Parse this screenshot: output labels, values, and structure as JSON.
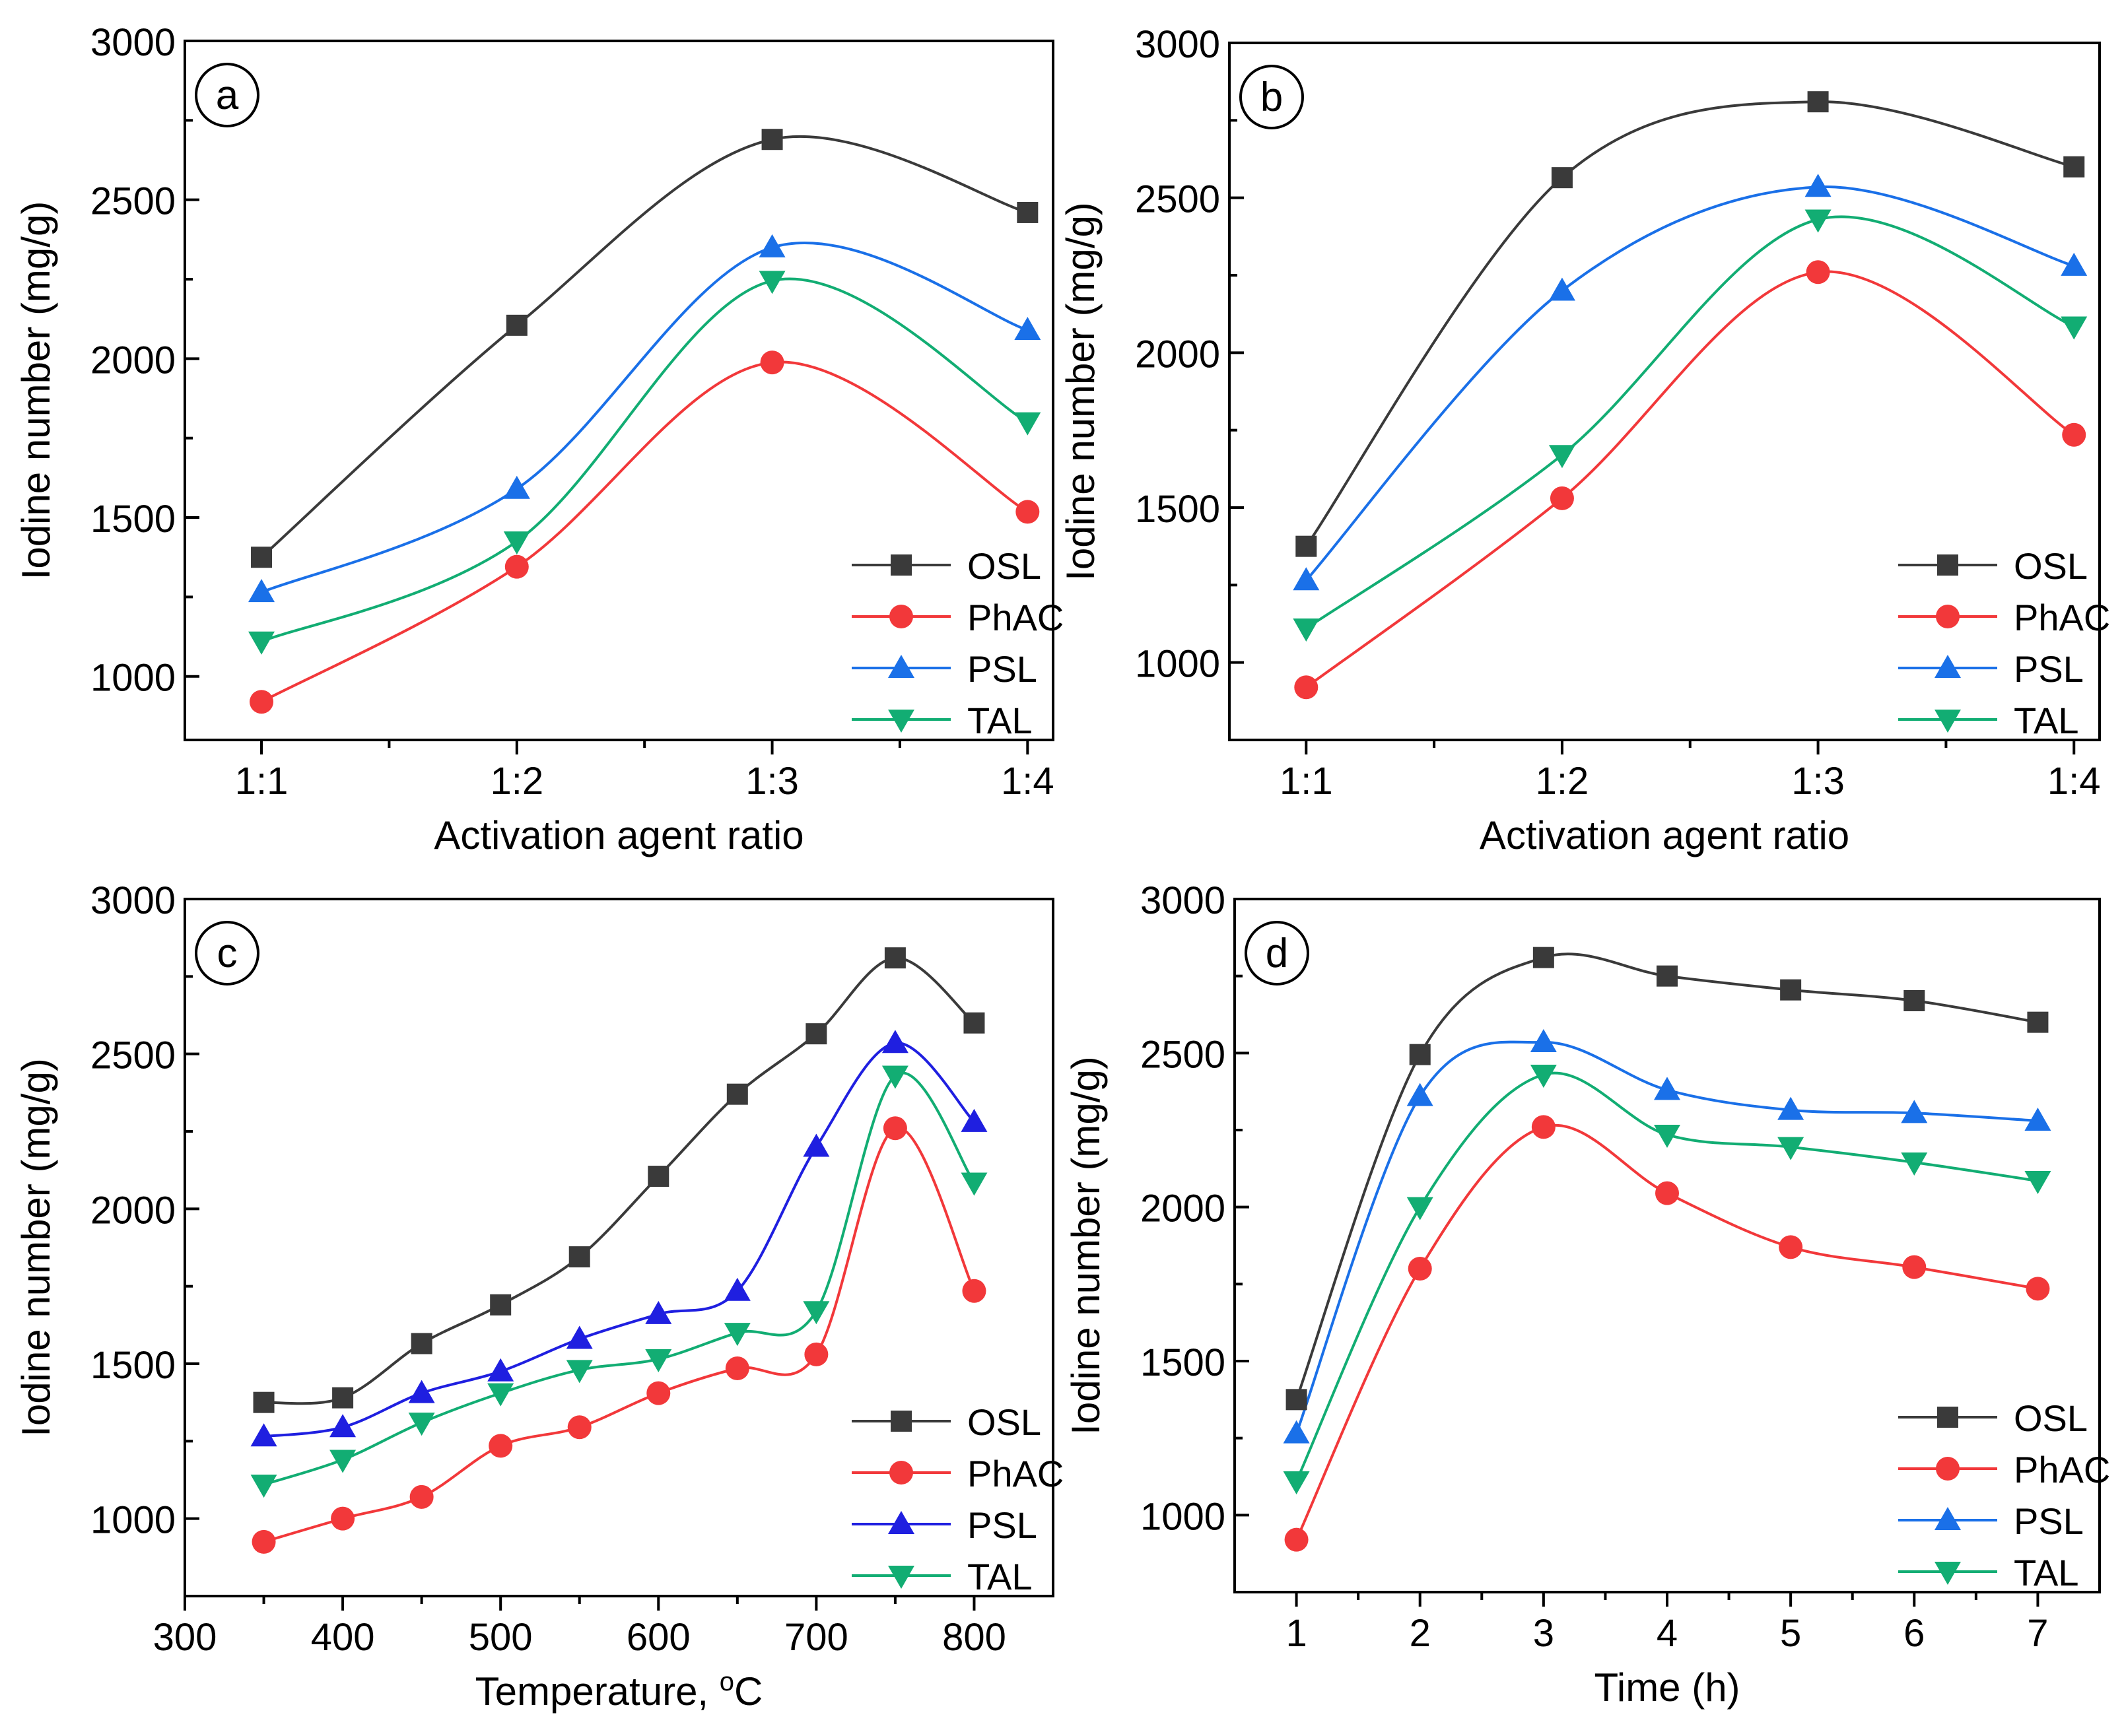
{
  "colors": {
    "OSL": "#3a3a3a",
    "PhAC": "#f2383a",
    "PSL": "#1a70e8",
    "PSL_panel_c": "#1f1fe0",
    "TAL": "#12ad73"
  },
  "chart_data": [
    {
      "type": "line",
      "panel_label": "a",
      "title": "",
      "xlabel": "Activation agent ratio",
      "ylabel": "Iodine number (mg/g)",
      "x_is_categorical": true,
      "categories": [
        "1:1",
        "1:2",
        "1:3",
        "1:4"
      ],
      "xlim": [
        0.7,
        4.1
      ],
      "ylim": [
        800,
        3000
      ],
      "yticks": [
        1000,
        1500,
        2000,
        2500,
        3000
      ],
      "grid": false,
      "legend_position": "bottom-right",
      "series": [
        {
          "name": "OSL",
          "marker": "square",
          "values": [
            1375,
            2105,
            2690,
            2460
          ]
        },
        {
          "name": "PhAC",
          "marker": "circle",
          "values": [
            920,
            1345,
            1988,
            1518
          ]
        },
        {
          "name": "PSL",
          "marker": "triangle-up",
          "values": [
            1265,
            1590,
            2350,
            2090
          ]
        },
        {
          "name": "TAL",
          "marker": "triangle-down",
          "values": [
            1110,
            1425,
            2245,
            1800
          ]
        }
      ]
    },
    {
      "type": "line",
      "panel_label": "b",
      "title": "",
      "xlabel": "Activation agent ratio",
      "ylabel": "Iodine number (mg/g)",
      "x_is_categorical": true,
      "categories": [
        "1:1",
        "1:2",
        "1:3",
        "1:4"
      ],
      "xlim": [
        0.7,
        4.1
      ],
      "ylim": [
        750,
        3000
      ],
      "yticks": [
        1000,
        1500,
        2000,
        2500,
        3000
      ],
      "grid": false,
      "legend_position": "bottom-right",
      "series": [
        {
          "name": "OSL",
          "marker": "square",
          "values": [
            1375,
            2565,
            2810,
            2600
          ]
        },
        {
          "name": "PhAC",
          "marker": "circle",
          "values": [
            920,
            1530,
            2260,
            1735
          ]
        },
        {
          "name": "PSL",
          "marker": "triangle-up",
          "values": [
            1265,
            2200,
            2535,
            2280
          ]
        },
        {
          "name": "TAL",
          "marker": "triangle-down",
          "values": [
            1110,
            1670,
            2430,
            2085
          ]
        }
      ]
    },
    {
      "type": "line",
      "panel_label": "c",
      "title": "",
      "xlabel": "Temperature, ",
      "xlabel_unit": "C",
      "xlabel_sup": "o",
      "ylabel": "Iodine number (mg/g)",
      "x": [
        350,
        400,
        450,
        500,
        550,
        600,
        650,
        700,
        750,
        800
      ],
      "xlim": [
        300,
        850
      ],
      "xticks": [
        300,
        400,
        500,
        600,
        700,
        800
      ],
      "ylim": [
        750,
        3000
      ],
      "yticks": [
        1000,
        1500,
        2000,
        2500,
        3000
      ],
      "grid": false,
      "legend_position": "bottom-right",
      "series": [
        {
          "name": "OSL",
          "marker": "square",
          "values": [
            1375,
            1390,
            1565,
            1690,
            1845,
            2105,
            2370,
            2565,
            2810,
            2600
          ]
        },
        {
          "name": "PhAC",
          "marker": "circle",
          "values": [
            925,
            1000,
            1070,
            1235,
            1295,
            1405,
            1485,
            1530,
            2260,
            1735
          ]
        },
        {
          "name": "PSL",
          "marker": "triangle-up",
          "values": [
            1265,
            1295,
            1405,
            1475,
            1580,
            1660,
            1735,
            2200,
            2535,
            2280
          ]
        },
        {
          "name": "TAL",
          "marker": "triangle-down",
          "values": [
            1110,
            1190,
            1310,
            1405,
            1480,
            1515,
            1600,
            1670,
            2430,
            2085
          ]
        }
      ]
    },
    {
      "type": "line",
      "panel_label": "d",
      "title": "",
      "xlabel": "Time (h)",
      "ylabel": "Iodine number (mg/g)",
      "x": [
        1,
        2,
        3,
        4,
        5,
        6,
        7
      ],
      "xlim": [
        0.5,
        7.5
      ],
      "xticks": [
        1,
        2,
        3,
        4,
        5,
        6,
        7
      ],
      "ylim": [
        750,
        3000
      ],
      "yticks": [
        1000,
        1500,
        2000,
        2500,
        3000
      ],
      "grid": false,
      "legend_position": "bottom-right",
      "series": [
        {
          "name": "OSL",
          "marker": "square",
          "values": [
            1375,
            2495,
            2810,
            2750,
            2705,
            2670,
            2600
          ]
        },
        {
          "name": "PhAC",
          "marker": "circle",
          "values": [
            920,
            1800,
            2260,
            2045,
            1870,
            1805,
            1735
          ]
        },
        {
          "name": "PSL",
          "marker": "triangle-up",
          "values": [
            1265,
            2360,
            2535,
            2380,
            2315,
            2305,
            2280
          ]
        },
        {
          "name": "TAL",
          "marker": "triangle-down",
          "values": [
            1110,
            2000,
            2430,
            2235,
            2195,
            2145,
            2085
          ]
        }
      ]
    }
  ]
}
